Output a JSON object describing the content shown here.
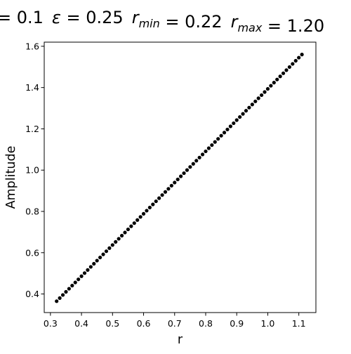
{
  "chart_data": {
    "type": "scatter",
    "title": "= 0.1  ε = 0.25  r_min = 0.22  r_max = 1.20",
    "title_parts": [
      {
        "text": "= 0.1",
        "style": "normal"
      },
      {
        "text": "ε",
        "style": "italic"
      },
      {
        "text": " = 0.25",
        "style": "normal"
      },
      {
        "text": "r",
        "style": "italic",
        "sub": "min"
      },
      {
        "text": " = 0.22",
        "style": "normal"
      },
      {
        "text": "r",
        "style": "italic",
        "sub": "max"
      },
      {
        "text": " = 1.20",
        "style": "normal"
      }
    ],
    "xlabel": "r",
    "ylabel": "Amplitude",
    "xlim": [
      0.28,
      1.155
    ],
    "ylim": [
      0.31,
      1.62
    ],
    "xticks": [
      0.3,
      0.4,
      0.5,
      0.6,
      0.7,
      0.8,
      0.9,
      1.0,
      1.1
    ],
    "xtick_labels": [
      "0.3",
      "0.4",
      "0.5",
      "0.6",
      "0.7",
      "0.8",
      "0.9",
      "1.0",
      "1.1"
    ],
    "yticks": [
      0.4,
      0.6,
      0.8,
      1.0,
      1.2,
      1.4,
      1.6
    ],
    "ytick_labels": [
      "0.4",
      "0.6",
      "0.8",
      "1.0",
      "1.2",
      "1.4",
      "1.6"
    ],
    "grid": false,
    "marker_color": "#000000",
    "series": [
      {
        "x_start": 0.32,
        "x_end": 1.11,
        "count": 80,
        "y_start": 0.365,
        "y_end": 1.56
      }
    ]
  }
}
